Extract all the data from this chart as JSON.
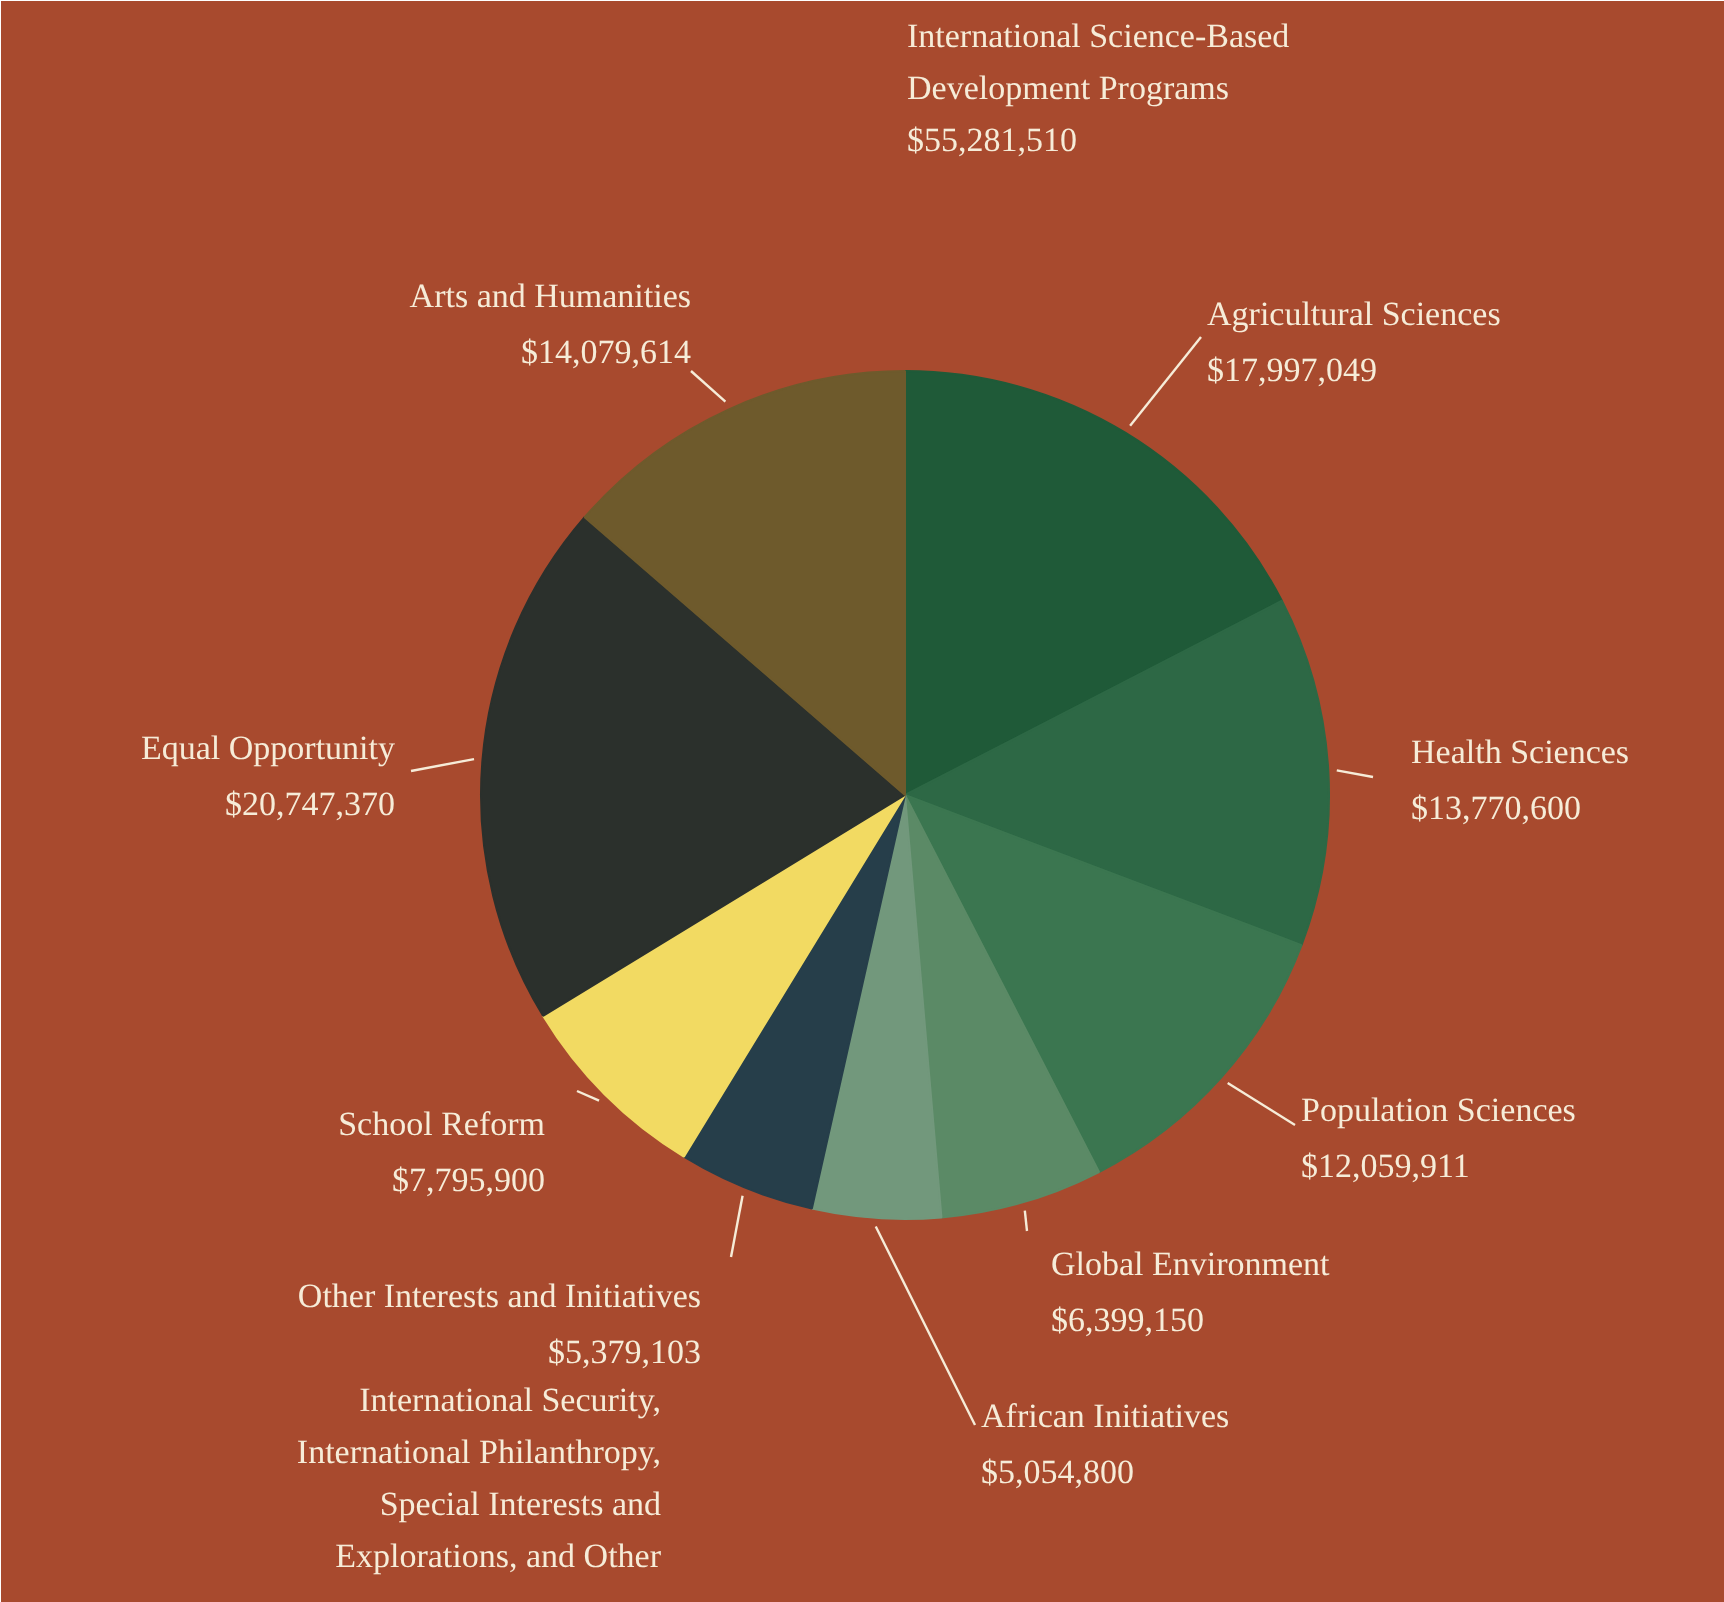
{
  "chart_data": {
    "type": "pie",
    "categories": [
      "Agricultural Sciences",
      "Health Sciences",
      "Population Sciences",
      "Global Environment",
      "African Initiatives",
      "Other Interests and Initiatives",
      "School Reform",
      "Equal Opportunity",
      "Arts and Humanities"
    ],
    "values": [
      17997049,
      13770600,
      12059911,
      6399150,
      5054800,
      5379103,
      7795900,
      20747370,
      14079614
    ],
    "value_labels": [
      "$17,997,049",
      "$13,770,600",
      "$12,059,911",
      "$6,399,150",
      "$5,054,800",
      "$5,379,103",
      "$7,795,900",
      "$20,747,370",
      "$14,079,614"
    ],
    "colors": [
      "#1f5a38",
      "#2d6845",
      "#3b7650",
      "#5b8a66",
      "#72987c",
      "#263e4a",
      "#f2da62",
      "#2b302c",
      "#6e5a2c"
    ],
    "annotations": [
      "International Science-Based\nDevelopment Programs\n$55,281,510",
      "International Security,\nInternational Philanthropy,\nSpecial Interests and\nExplorations, and Other"
    ]
  }
}
